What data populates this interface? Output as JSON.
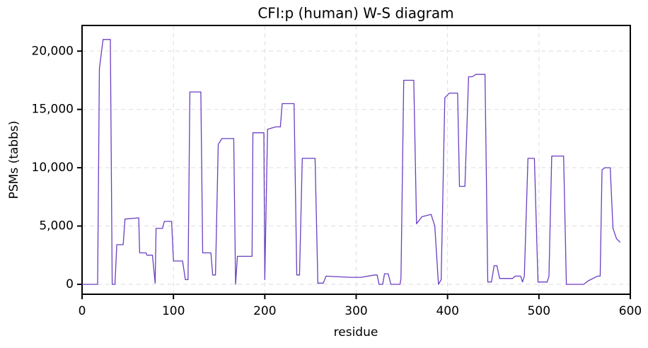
{
  "chart_data": {
    "type": "line",
    "title": "CFI:p (human) W-S diagram",
    "x_label": "residue",
    "y_label": "PSMs (tabbs)",
    "x": [
      0,
      17,
      19,
      23,
      31,
      33,
      36,
      38,
      45,
      47,
      62,
      63,
      70,
      71,
      77,
      80,
      81,
      88,
      90,
      98,
      100,
      110,
      113,
      116,
      118,
      130,
      132,
      141,
      143,
      146,
      149,
      153,
      166,
      168,
      170,
      186,
      187,
      199,
      200,
      203,
      212,
      217,
      219,
      232,
      235,
      238,
      241,
      255,
      258,
      264,
      267,
      294,
      305,
      320,
      323,
      325,
      329,
      331,
      335,
      338,
      348,
      349,
      352,
      363,
      366,
      372,
      382,
      386,
      390,
      393,
      397,
      402,
      411,
      413,
      419,
      423,
      427,
      431,
      441,
      444,
      448,
      451,
      454,
      457,
      471,
      474,
      480,
      482,
      484,
      488,
      495,
      499,
      509,
      511,
      514,
      527,
      530,
      549,
      554,
      564,
      567,
      569,
      572,
      578,
      581,
      585,
      589
    ],
    "values": [
      0,
      0,
      18500,
      21000,
      21000,
      0,
      0,
      3400,
      3400,
      5600,
      5700,
      2700,
      2700,
      2500,
      2500,
      100,
      4800,
      4800,
      5400,
      5400,
      2000,
      2000,
      400,
      400,
      16500,
      16500,
      2700,
      2700,
      800,
      800,
      12000,
      12500,
      12500,
      0,
      2400,
      2400,
      13000,
      13000,
      400,
      13300,
      13500,
      13500,
      15500,
      15500,
      800,
      800,
      10800,
      10800,
      100,
      100,
      700,
      600,
      600,
      800,
      800,
      0,
      0,
      900,
      900,
      0,
      0,
      500,
      17500,
      17500,
      5200,
      5800,
      6000,
      5000,
      0,
      400,
      16000,
      16400,
      16400,
      8400,
      8400,
      17800,
      17800,
      18000,
      18000,
      200,
      200,
      1600,
      1600,
      500,
      500,
      700,
      700,
      200,
      700,
      10800,
      10800,
      200,
      200,
      700,
      11000,
      11000,
      0,
      0,
      300,
      700,
      700,
      9800,
      10000,
      10000,
      4800,
      3900,
      3600
    ],
    "color": "#6a3fc2",
    "xlim": [
      0,
      600
    ],
    "xticks": [
      0,
      100,
      200,
      300,
      400,
      500,
      600
    ],
    "ylim": [
      -850,
      22200
    ],
    "yticks": [
      0,
      {
        "value": 5000,
        "label": "5,000"
      },
      {
        "value": 10000,
        "label": "10,000"
      },
      {
        "value": 15000,
        "label": "15,000"
      },
      {
        "value": 20000,
        "label": "20,000"
      }
    ],
    "grid": true
  }
}
